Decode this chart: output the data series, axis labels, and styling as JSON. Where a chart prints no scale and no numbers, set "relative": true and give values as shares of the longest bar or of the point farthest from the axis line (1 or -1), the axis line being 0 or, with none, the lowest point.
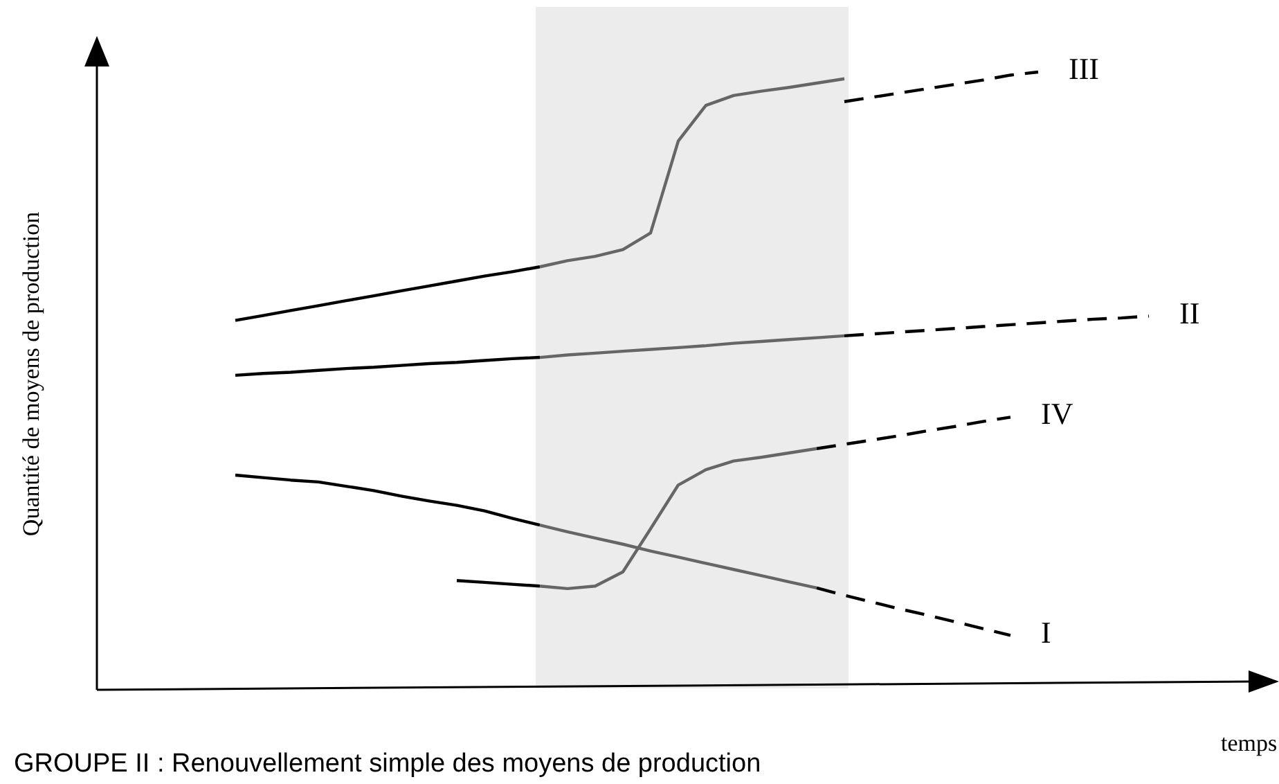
{
  "chart_data": {
    "type": "line",
    "title": "GROUPE II : Renouvellement simple des moyens de production",
    "xlabel": "temps",
    "ylabel": "Quantité de moyens de production",
    "relative": true,
    "categories": [
      null,
      null,
      null,
      null,
      null,
      null,
      null,
      null,
      null,
      null,
      null,
      null,
      null,
      null,
      null,
      null,
      null,
      null,
      null,
      null,
      null,
      null,
      null,
      null,
      null,
      null,
      null,
      null,
      null,
      null,
      null,
      null,
      null,
      null,
      null,
      null,
      null,
      null,
      null,
      null,
      null,
      null,
      null
    ],
    "series": [
      {
        "color": "#000000",
        "line_style": "solid",
        "values": [
          null,
          null,
          null,
          null,
          null,
          0.346,
          0.342,
          0.338,
          0.335,
          0.328,
          0.321,
          0.312,
          0.304,
          0.297,
          0.288,
          0.276,
          0.265,
          null,
          null,
          null,
          null,
          null,
          null,
          null,
          null,
          null,
          null,
          null,
          null,
          null,
          null,
          null,
          null,
          null,
          null,
          null,
          null,
          null,
          null,
          null,
          null,
          null,
          null
        ]
      },
      {
        "color": "#666666",
        "line_style": "solid",
        "values": [
          null,
          null,
          null,
          null,
          null,
          null,
          null,
          null,
          null,
          null,
          null,
          null,
          null,
          null,
          null,
          null,
          0.265,
          0.254,
          0.244,
          0.234,
          0.223,
          0.213,
          0.203,
          0.193,
          0.183,
          0.173,
          0.163,
          null,
          null,
          null,
          null,
          null,
          null,
          null,
          null,
          null,
          null,
          null,
          null,
          null,
          null,
          null,
          null
        ]
      },
      {
        "name": "I",
        "color": "#000000",
        "line_style": "dashed",
        "values": [
          null,
          null,
          null,
          null,
          null,
          null,
          null,
          null,
          null,
          null,
          null,
          null,
          null,
          null,
          null,
          null,
          null,
          null,
          null,
          null,
          null,
          null,
          null,
          null,
          null,
          null,
          0.163,
          0.151,
          0.14,
          0.129,
          0.119,
          0.108,
          0.097,
          0.086,
          null,
          null,
          null,
          null,
          null,
          null,
          null,
          null,
          null
        ]
      },
      {
        "color": "#000000",
        "line_style": "solid",
        "values": [
          null,
          null,
          null,
          null,
          null,
          0.508,
          0.511,
          0.513,
          0.516,
          0.519,
          0.521,
          0.524,
          0.527,
          0.529,
          0.532,
          0.535,
          0.537,
          null,
          null,
          null,
          null,
          null,
          null,
          null,
          null,
          null,
          null,
          null,
          null,
          null,
          null,
          null,
          null,
          null,
          null,
          null,
          null,
          null,
          null,
          null,
          null,
          null,
          null
        ]
      },
      {
        "color": "#666666",
        "line_style": "solid",
        "values": [
          null,
          null,
          null,
          null,
          null,
          null,
          null,
          null,
          null,
          null,
          null,
          null,
          null,
          null,
          null,
          null,
          0.537,
          0.541,
          0.544,
          0.547,
          0.55,
          0.553,
          0.556,
          0.56,
          0.563,
          0.566,
          0.569,
          0.572,
          null,
          null,
          null,
          null,
          null,
          null,
          null,
          null,
          null,
          null,
          null,
          null,
          null,
          null,
          null
        ]
      },
      {
        "name": "II",
        "color": "#000000",
        "line_style": "dashed",
        "values": [
          null,
          null,
          null,
          null,
          null,
          null,
          null,
          null,
          null,
          null,
          null,
          null,
          null,
          null,
          null,
          null,
          null,
          null,
          null,
          null,
          null,
          null,
          null,
          null,
          null,
          null,
          null,
          0.572,
          0.575,
          0.578,
          0.581,
          0.584,
          0.587,
          0.59,
          0.593,
          0.596,
          0.599,
          0.601,
          0.604,
          null,
          null,
          null,
          null
        ]
      },
      {
        "color": "#000000",
        "line_style": "solid",
        "values": [
          null,
          null,
          null,
          null,
          null,
          0.597,
          0.605,
          0.613,
          0.621,
          0.629,
          0.637,
          0.645,
          0.653,
          0.661,
          0.669,
          0.676,
          0.684,
          null,
          null,
          null,
          null,
          null,
          null,
          null,
          null,
          null,
          null,
          null,
          null,
          null,
          null,
          null,
          null,
          null,
          null,
          null,
          null,
          null,
          null,
          null,
          null,
          null,
          null
        ]
      },
      {
        "color": "#666666",
        "line_style": "solid",
        "values": [
          null,
          null,
          null,
          null,
          null,
          null,
          null,
          null,
          null,
          null,
          null,
          null,
          null,
          null,
          null,
          null,
          0.684,
          0.694,
          0.701,
          0.712,
          0.739,
          0.888,
          0.946,
          0.962,
          0.969,
          0.975,
          0.982,
          0.989,
          null,
          null,
          null,
          null,
          null,
          null,
          null,
          null,
          null,
          null,
          null,
          null,
          null,
          null,
          null
        ]
      },
      {
        "name": "III",
        "color": "#000000",
        "line_style": "dashed",
        "values": [
          null,
          null,
          null,
          null,
          null,
          null,
          null,
          null,
          null,
          null,
          null,
          null,
          null,
          null,
          null,
          null,
          null,
          null,
          null,
          null,
          null,
          null,
          null,
          null,
          null,
          null,
          null,
          0.952,
          0.959,
          0.966,
          0.973,
          0.98,
          0.987,
          0.995,
          1,
          null,
          null,
          null,
          null,
          null,
          null,
          null,
          null
        ]
      },
      {
        "color": "#000000",
        "line_style": "solid",
        "values": [
          null,
          null,
          null,
          null,
          null,
          null,
          null,
          null,
          null,
          null,
          null,
          null,
          null,
          0.175,
          0.172,
          0.169,
          0.166,
          null,
          null,
          null,
          null,
          null,
          null,
          null,
          null,
          null,
          null,
          null,
          null,
          null,
          null,
          null,
          null,
          null,
          null,
          null,
          null,
          null,
          null,
          null,
          null,
          null,
          null
        ]
      },
      {
        "color": "#666666",
        "line_style": "solid",
        "values": [
          null,
          null,
          null,
          null,
          null,
          null,
          null,
          null,
          null,
          null,
          null,
          null,
          null,
          null,
          null,
          null,
          0.166,
          0.162,
          0.166,
          0.189,
          0.259,
          0.33,
          0.355,
          0.369,
          0.375,
          0.382,
          0.389,
          null,
          null,
          null,
          null,
          null,
          null,
          null,
          null,
          null,
          null,
          null,
          null,
          null,
          null,
          null,
          null
        ]
      },
      {
        "name": "IV",
        "color": "#000000",
        "line_style": "dashed",
        "values": [
          null,
          null,
          null,
          null,
          null,
          null,
          null,
          null,
          null,
          null,
          null,
          null,
          null,
          null,
          null,
          null,
          null,
          null,
          null,
          null,
          null,
          null,
          null,
          null,
          null,
          null,
          0.389,
          0.396,
          0.403,
          0.41,
          0.418,
          0.425,
          0.433,
          0.44,
          null,
          null,
          null,
          null,
          null,
          null,
          null,
          null,
          null
        ]
      }
    ]
  }
}
